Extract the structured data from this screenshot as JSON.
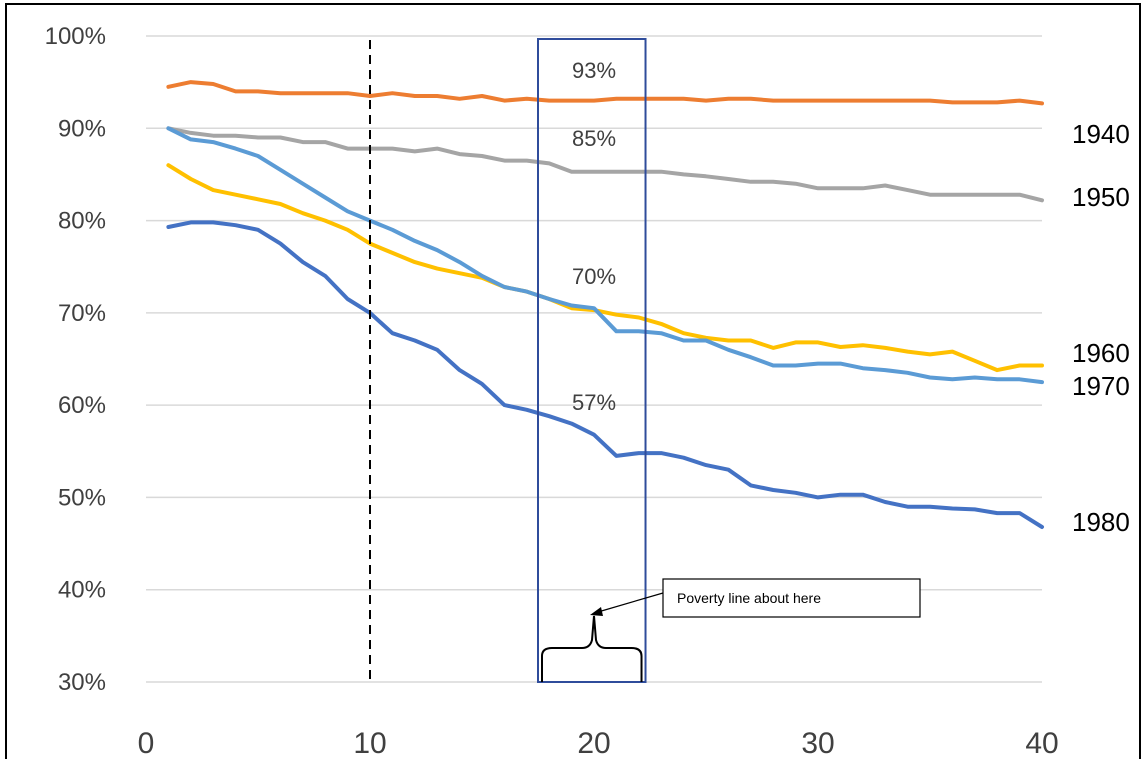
{
  "chart_data": {
    "type": "line",
    "title": "",
    "xlabel": "",
    "ylabel": "",
    "xlim": [
      0,
      40
    ],
    "ylim": [
      30,
      100
    ],
    "x_ticks": [
      "0",
      "10",
      "20",
      "30",
      "40"
    ],
    "y_ticks": [
      "30%",
      "40%",
      "50%",
      "60%",
      "70%",
      "80%",
      "90%",
      "100%"
    ],
    "grid": "horizontal",
    "x": [
      1,
      2,
      3,
      4,
      5,
      6,
      7,
      8,
      9,
      10,
      11,
      12,
      13,
      14,
      15,
      16,
      17,
      18,
      19,
      20,
      21,
      22,
      23,
      24,
      25,
      26,
      27,
      28,
      29,
      30,
      31,
      32,
      33,
      34,
      35,
      36,
      37,
      38,
      39,
      40
    ],
    "series": [
      {
        "name": "1940",
        "color": "#ED7D31",
        "values": [
          94.5,
          95,
          94.8,
          94,
          94,
          93.8,
          93.8,
          93.8,
          93.8,
          93.5,
          93.8,
          93.5,
          93.5,
          93.2,
          93.5,
          93,
          93.2,
          93,
          93,
          93,
          93.2,
          93.2,
          93.2,
          93.2,
          93,
          93.2,
          93.2,
          93,
          93,
          93,
          93,
          93,
          93,
          93,
          93,
          92.8,
          92.8,
          92.8,
          93,
          92.7
        ]
      },
      {
        "name": "1950",
        "color": "#A5A5A5",
        "values": [
          90,
          89.5,
          89.2,
          89.2,
          89,
          89,
          88.5,
          88.5,
          87.8,
          87.8,
          87.8,
          87.5,
          87.8,
          87.2,
          87,
          86.5,
          86.5,
          86.2,
          85.3,
          85.3,
          85.3,
          85.3,
          85.3,
          85,
          84.8,
          84.5,
          84.2,
          84.2,
          84,
          83.5,
          83.5,
          83.5,
          83.8,
          83.3,
          82.8,
          82.8,
          82.8,
          82.8,
          82.8,
          82.2
        ]
      },
      {
        "name": "1960",
        "color": "#FFC000",
        "values": [
          86,
          84.5,
          83.3,
          82.8,
          82.3,
          81.8,
          80.8,
          80,
          79,
          77.5,
          76.5,
          75.5,
          74.8,
          74.3,
          73.8,
          72.8,
          72.3,
          71.5,
          70.5,
          70.3,
          69.8,
          69.5,
          68.8,
          67.8,
          67.3,
          67,
          67,
          66.2,
          66.8,
          66.8,
          66.3,
          66.5,
          66.2,
          65.8,
          65.5,
          65.8,
          64.8,
          63.8,
          64.3,
          64.3
        ]
      },
      {
        "name": "1970",
        "color": "#5B9BD5",
        "values": [
          90,
          88.8,
          88.5,
          87.8,
          87,
          85.5,
          84,
          82.5,
          81,
          80,
          79,
          77.8,
          76.8,
          75.5,
          74,
          72.8,
          72.3,
          71.5,
          70.8,
          70.5,
          68,
          68,
          67.8,
          67,
          67,
          66,
          65.2,
          64.3,
          64.3,
          64.5,
          64.5,
          64,
          63.8,
          63.5,
          63,
          62.8,
          63,
          62.8,
          62.8,
          62.5
        ]
      },
      {
        "name": "1980",
        "color": "#4472C4",
        "values": [
          79.3,
          79.8,
          79.8,
          79.5,
          79,
          77.5,
          75.5,
          74,
          71.5,
          70,
          67.8,
          67,
          66,
          63.8,
          62.3,
          60,
          59.5,
          58.8,
          58,
          56.8,
          54.5,
          54.8,
          54.8,
          54.3,
          53.5,
          53,
          51.3,
          50.8,
          50.5,
          50,
          50.3,
          50.3,
          49.5,
          49,
          49,
          48.8,
          48.7,
          48.3,
          48.3,
          46.8
        ]
      }
    ],
    "series_labels": [
      "1940",
      "1950",
      "1960",
      "1970",
      "1980"
    ],
    "annotations": {
      "dashed_line_x": 10,
      "highlight_box_x": [
        17.5,
        22.3
      ],
      "values_at_20": [
        "93%",
        "85%",
        "70%",
        "57%"
      ],
      "note": "Poverty line about here"
    },
    "box_color": "#2F4C9B"
  }
}
